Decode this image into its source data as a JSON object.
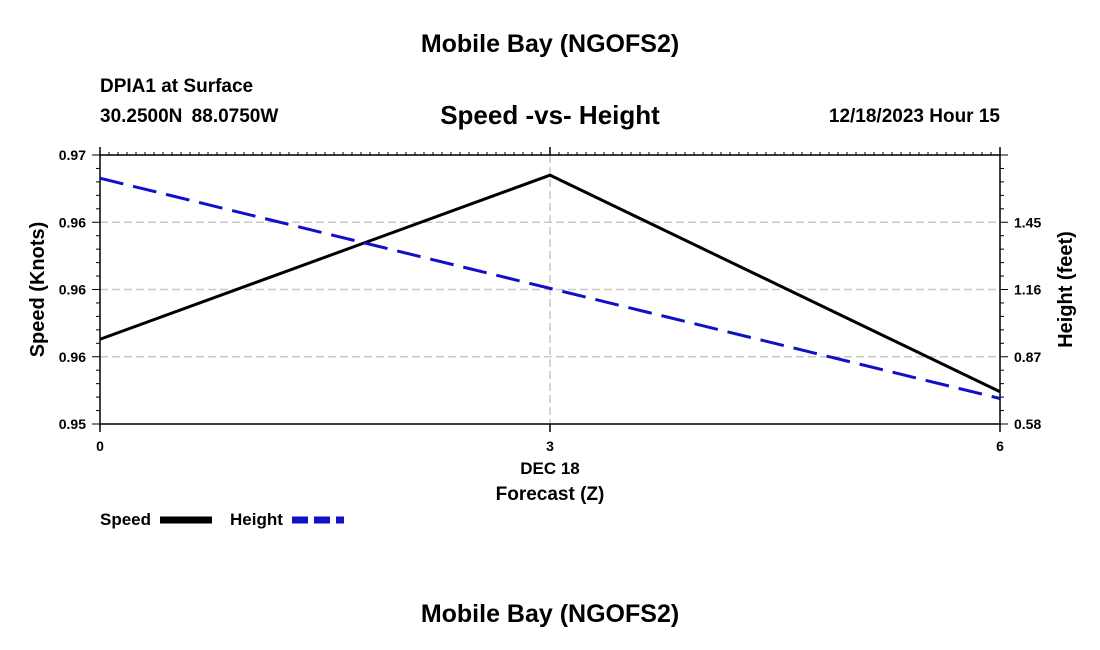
{
  "page": {
    "title_top": "Mobile Bay (NGOFS2)",
    "station": "DPIA1 at Surface",
    "coords": "30.2500N 88.0750W",
    "subtitle": "Speed -vs- Height",
    "datetime": "12/18/2023 Hour 15",
    "title_bottom": "Mobile Bay (NGOFS2)"
  },
  "colors": {
    "speed": "#000000",
    "height": "#1010c8",
    "grid": "#c8c8c8"
  },
  "chart_data": {
    "type": "line",
    "title": "Speed -vs- Height",
    "xlabel": "Forecast (Z)",
    "x_date_label": "DEC 18",
    "x_ticks": [
      0,
      3,
      6
    ],
    "xlim": [
      0,
      6
    ],
    "ylabel_left": "Speed (Knots)",
    "ylabel_right": "Height (feet)",
    "ylim_left": [
      0.95,
      0.97
    ],
    "ylim_right": [
      0.58,
      1.74
    ],
    "y_ticks_left": [
      {
        "value": 0.95,
        "label": "0.95"
      },
      {
        "value": 0.955,
        "label": "0.96"
      },
      {
        "value": 0.96,
        "label": "0.96"
      },
      {
        "value": 0.965,
        "label": "0.96"
      },
      {
        "value": 0.97,
        "label": "0.97"
      }
    ],
    "y_ticks_right": [
      {
        "value": 0.58,
        "label": "0.58"
      },
      {
        "value": 0.87,
        "label": "0.87"
      },
      {
        "value": 1.16,
        "label": "1.16"
      },
      {
        "value": 1.45,
        "label": "1.45"
      }
    ],
    "grid": true,
    "legend": "bottom-left",
    "series": [
      {
        "name": "Speed",
        "axis": "left",
        "style": "solid",
        "x": [
          0,
          3,
          6
        ],
        "values": [
          0.9563,
          0.9685,
          0.9524
        ]
      },
      {
        "name": "Height",
        "axis": "right",
        "style": "dashed",
        "x": [
          0,
          6
        ],
        "values": [
          1.64,
          0.69
        ]
      }
    ]
  }
}
